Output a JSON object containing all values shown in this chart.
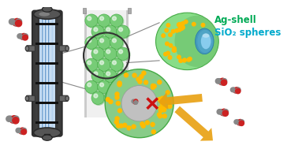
{
  "bg_color": "#ffffff",
  "label_ag_shell": "Ag-shell",
  "label_sio2": "SiO₂ spheres",
  "label_ag_color": "#00aa55",
  "label_sio2_color": "#00aacc",
  "reactor_outer": "#2a2a2a",
  "reactor_inner_light": "#c0c0c8",
  "reactor_blue": "#6699cc",
  "reactor_blue_light": "#99bbdd",
  "green_sphere_color": "#77cc77",
  "green_sphere_edge": "#44aa44",
  "yellow_dot_color": "#ffbb00",
  "orange_arrow_color": "#e8a010",
  "red_cross_color": "#cc1111",
  "sio2_core_color": "#55aacc",
  "inner_core_color": "#b8b8b8",
  "connector_color": "#888888"
}
